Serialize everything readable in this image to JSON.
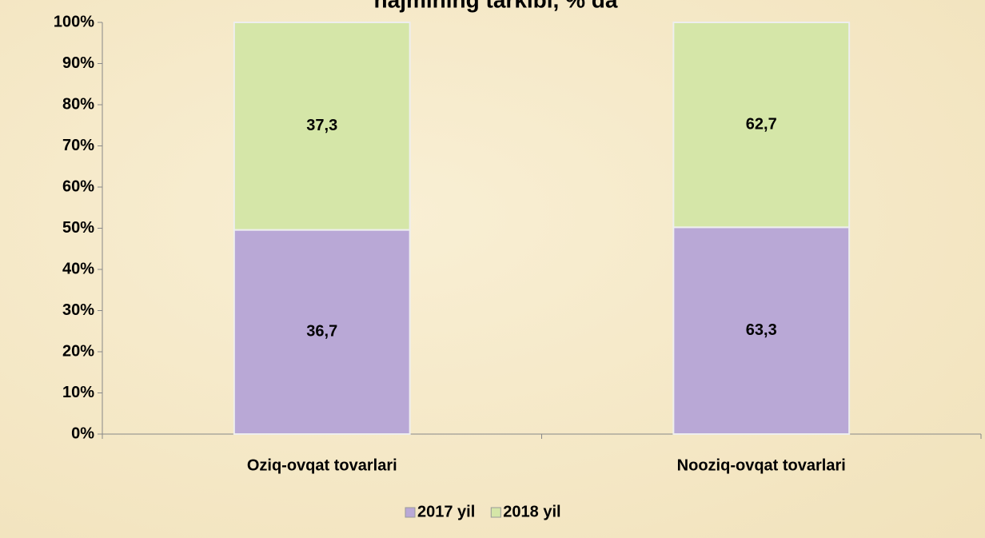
{
  "chart_data": {
    "type": "bar",
    "stack": "percent",
    "title": "hajmining tarkibi, % da",
    "categories": [
      "Oziq-ovqat tovarlari",
      "Nooziq-ovqat tovarlari"
    ],
    "series": [
      {
        "name": "2017 yil",
        "color": "#b9a8d6",
        "values": [
          36.7,
          63.3
        ],
        "value_labels": [
          "36,7",
          "63,3"
        ]
      },
      {
        "name": "2018 yil",
        "color": "#d5e6a8",
        "values": [
          37.3,
          62.7
        ],
        "value_labels": [
          "37,3",
          "62,7"
        ]
      }
    ],
    "ylim": [
      0,
      100
    ],
    "yticks": [
      {
        "value": 0,
        "label": "0%"
      },
      {
        "value": 10,
        "label": "10%"
      },
      {
        "value": 20,
        "label": "20%"
      },
      {
        "value": 30,
        "label": "30%"
      },
      {
        "value": 40,
        "label": "40%"
      },
      {
        "value": 50,
        "label": "50%"
      },
      {
        "value": 60,
        "label": "60%"
      },
      {
        "value": 70,
        "label": "70%"
      },
      {
        "value": 80,
        "label": "80%"
      },
      {
        "value": 90,
        "label": "90%"
      },
      {
        "value": 100,
        "label": "100%"
      }
    ],
    "legend": "bottom"
  }
}
